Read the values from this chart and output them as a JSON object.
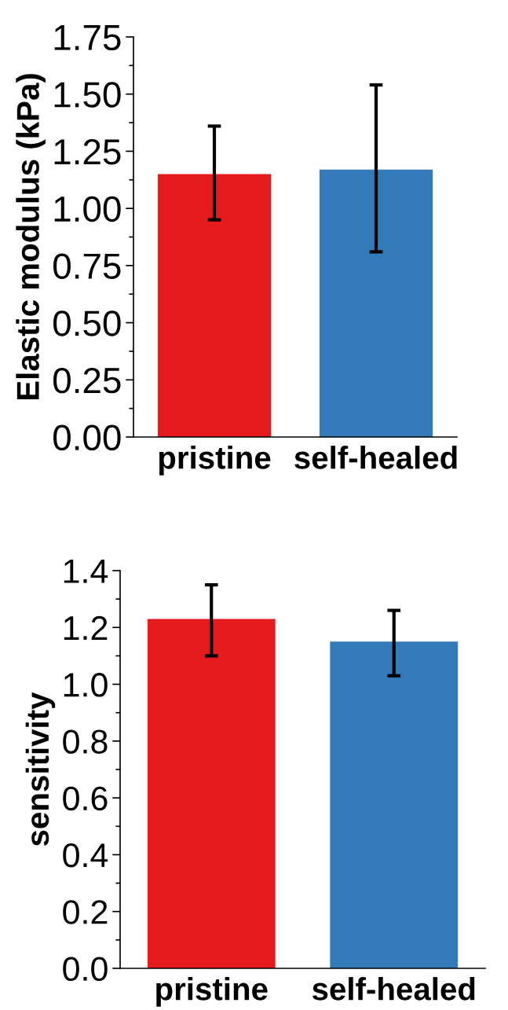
{
  "chart_data": [
    {
      "type": "bar",
      "ylabel": "Elastic modulus (kPa)",
      "categories": [
        "pristine",
        "self-healed"
      ],
      "values": [
        1.15,
        1.17
      ],
      "colors": [
        "#e41a1c",
        "#337ab9"
      ],
      "errors": [
        [
          0.95,
          1.36
        ],
        [
          0.81,
          1.54
        ]
      ],
      "ylim": [
        0,
        1.75
      ],
      "yticks": [
        {
          "value": 0,
          "label": "0.00"
        },
        {
          "value": 0.25,
          "label": "0.25"
        },
        {
          "value": 0.5,
          "label": "0.50"
        },
        {
          "value": 0.75,
          "label": "0.75"
        },
        {
          "value": 1,
          "label": "1.00"
        },
        {
          "value": 1.25,
          "label": "1.25"
        },
        {
          "value": 1.5,
          "label": "1.50"
        },
        {
          "value": 1.75,
          "label": "1.75"
        }
      ],
      "grid": false,
      "legend": false
    },
    {
      "type": "bar",
      "ylabel": "sensitivity",
      "categories": [
        "pristine",
        "self-healed"
      ],
      "values": [
        1.23,
        1.15
      ],
      "colors": [
        "#e41a1c",
        "#337ab9"
      ],
      "errors": [
        [
          1.1,
          1.35
        ],
        [
          1.03,
          1.26
        ]
      ],
      "ylim": [
        0,
        1.4
      ],
      "yticks": [
        {
          "value": 0,
          "label": "0.0"
        },
        {
          "value": 0.2,
          "label": "0.2"
        },
        {
          "value": 0.4,
          "label": "0.4"
        },
        {
          "value": 0.6,
          "label": "0.6"
        },
        {
          "value": 0.8,
          "label": "0.8"
        },
        {
          "value": 1,
          "label": "1.0"
        },
        {
          "value": 1.2,
          "label": "1.2"
        },
        {
          "value": 1.4,
          "label": "1.4"
        }
      ],
      "grid": false,
      "legend": false
    }
  ]
}
